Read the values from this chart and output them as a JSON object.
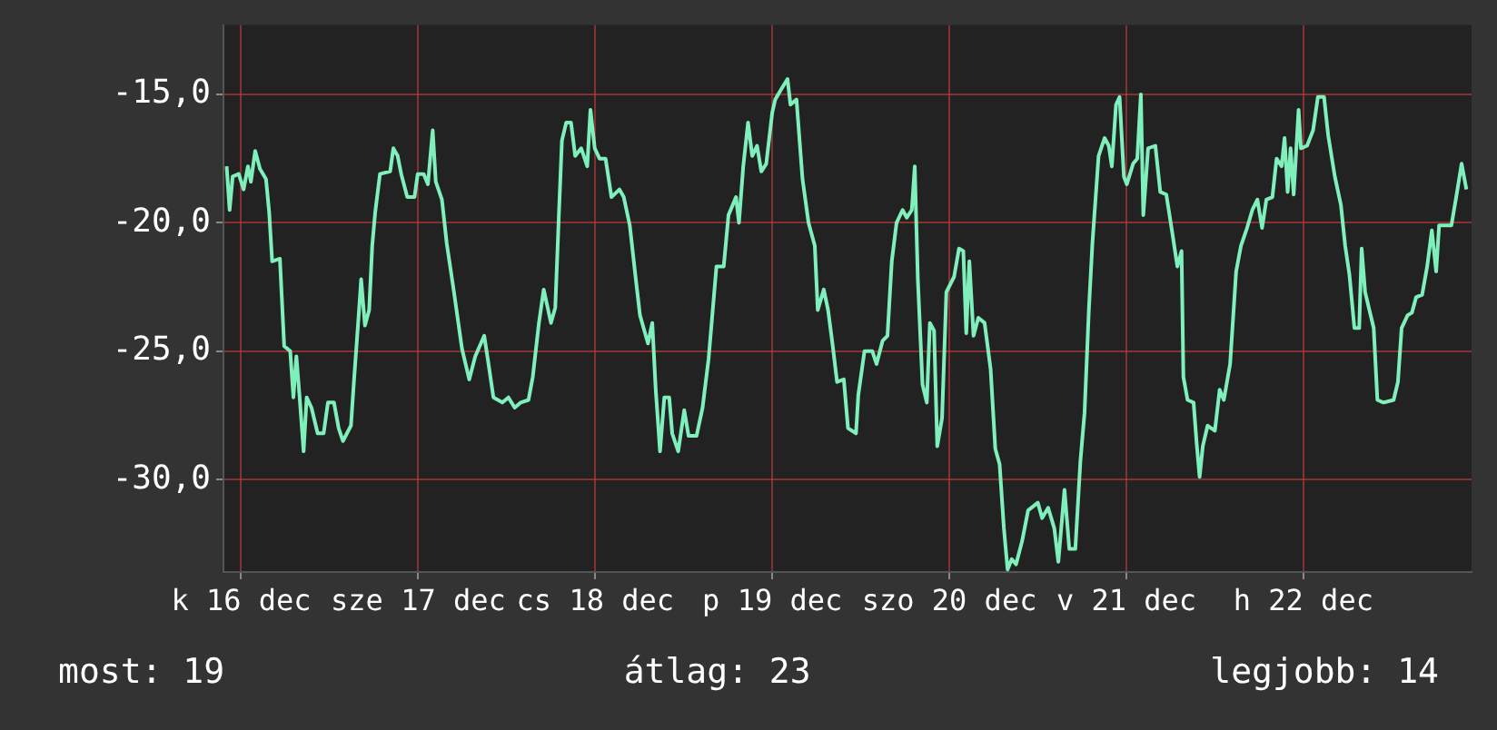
{
  "chart_data": {
    "type": "line",
    "annotations": [
      "most: 19",
      "átlag: 23",
      "legjobb: 14"
    ],
    "xlim": [
      "--12-15T21:36",
      "--12-22T22:48"
    ],
    "xticks": [
      {
        "value": "--12-16",
        "label": "k 16 dec"
      },
      {
        "value": "--12-17",
        "label": "sze 17 dec"
      },
      {
        "value": "--12-18",
        "label": "cs 18 dec"
      },
      {
        "value": "--12-19",
        "label": "p 19 dec"
      },
      {
        "value": "--12-20",
        "label": "szo 20 dec"
      },
      {
        "value": "--12-21",
        "label": "v 21 dec"
      },
      {
        "value": "--12-22",
        "label": "h 22 dec"
      }
    ],
    "ylim": [
      -33.6,
      -12.3
    ],
    "yticks": [
      {
        "value": -30,
        "label": "-30,0"
      },
      {
        "value": -25,
        "label": "-25,0"
      },
      {
        "value": -20,
        "label": "-20,0"
      },
      {
        "value": -15,
        "label": "-15,0"
      }
    ],
    "grid": true,
    "legend": false,
    "marker": "none",
    "line_style": "solid",
    "series": [
      {
        "color": "#7ff0bc",
        "x": [
          "--12-15T22:02",
          "--12-15T22:26",
          "--12-15T22:51",
          "--12-15T23:40",
          "--12-16T00:20",
          "--12-16T00:55",
          "--12-16T01:19",
          "--12-16T01:54",
          "--12-16T02:33",
          "--12-16T03:22",
          "--12-16T03:48",
          "--12-16T04:12",
          "--12-16T05:15",
          "--12-16T05:50",
          "--12-16T06:39",
          "--12-16T07:05",
          "--12-16T07:29",
          "--12-16T07:54",
          "--12-16T08:28",
          "--12-16T08:53",
          "--12-16T09:32",
          "--12-16T10:22",
          "--12-16T11:11",
          "--12-16T11:46",
          "--12-16T12:35",
          "--12-16T13:13",
          "--12-16T13:48",
          "--12-16T14:53",
          "--12-16T15:17",
          "--12-16T15:56",
          "--12-16T16:16",
          "--12-16T16:47",
          "--12-16T17:21",
          "--12-16T17:46",
          "--12-16T18:10",
          "--12-16T18:49",
          "--12-16T20:12",
          "--12-16T20:38",
          "--12-16T21:13",
          "--12-16T21:42",
          "--12-16T22:31",
          "--12-16T23:30",
          "--12-16T23:56",
          "--12-17T00:45",
          "--12-17T01:19",
          "--12-17T01:58",
          "--12-17T02:23",
          "--12-17T03:13",
          "--12-17T03:52",
          "--12-17T04:51",
          "--12-17T05:56",
          "--12-17T06:55",
          "--12-17T07:44",
          "--12-17T08:57",
          "--12-17T09:32",
          "--12-17T10:12",
          "--12-17T11:25",
          "--12-17T12:14",
          "--12-17T13:05",
          "--12-17T13:54",
          "--12-17T14:57",
          "--12-17T15:32",
          "--12-17T16:22",
          "--12-17T17:01",
          "--12-17T18:00",
          "--12-17T18:35",
          "--12-17T19:05",
          "--12-17T19:29",
          "--12-17T20:04",
          "--12-17T20:43",
          "--12-17T21:17",
          "--12-17T22:06",
          "--12-17T22:55",
          "--12-17T23:21",
          "--12-17T23:56",
          "--12-18T00:35",
          "--12-18T01:24",
          "--12-18T02:12",
          "--12-18T03:17",
          "--12-18T03:52",
          "--12-18T04:41",
          "--12-18T05:30",
          "--12-18T06:04",
          "--12-18T07:09",
          "--12-18T07:44",
          "--12-18T08:12",
          "--12-18T08:47",
          "--12-18T09:22",
          "--12-18T10:02",
          "--12-18T10:26",
          "--12-18T11:15",
          "--12-18T12:04",
          "--12-18T12:39",
          "--12-18T13:44",
          "--12-18T14:33",
          "--12-18T15:22",
          "--12-18T16:26",
          "--12-18T17:25",
          "--12-18T18:04",
          "--12-18T19:05",
          "--12-18T19:29",
          "--12-18T20:04",
          "--12-18T20:43",
          "--12-18T21:17",
          "--12-18T21:56",
          "--12-18T22:31",
          "--12-18T23:11",
          "--12-19T00:00",
          "--12-19T00:24",
          "--12-19T01:13",
          "--12-19T02:04",
          "--12-19T02:28",
          "--12-19T03:17",
          "--12-19T04:06",
          "--12-19T04:55",
          "--12-19T05:46",
          "--12-19T06:10",
          "--12-19T06:59",
          "--12-19T07:34",
          "--12-19T08:12",
          "--12-19T08:47",
          "--12-19T09:42",
          "--12-19T10:16",
          "--12-19T11:21",
          "--12-19T11:40",
          "--12-19T12:30",
          "--12-19T13:34",
          "--12-19T14:08",
          "--12-19T14:57",
          "--12-19T15:37",
          "--12-19T16:12",
          "--12-19T16:51",
          "--12-19T17:40",
          "--12-19T18:14",
          "--12-19T18:55",
          "--12-19T19:19",
          "--12-19T19:44",
          "--12-19T20:22",
          "--12-19T20:57",
          "--12-19T21:22",
          "--12-19T21:56",
          "--12-19T22:22",
          "--12-19T23:01",
          "--12-19T23:36",
          "--12-20T00:39",
          "--12-20T01:19",
          "--12-20T01:54",
          "--12-20T02:18",
          "--12-20T02:43",
          "--12-20T03:17",
          "--12-20T03:56",
          "--12-20T04:47",
          "--12-20T05:36",
          "--12-20T06:14",
          "--12-20T06:49",
          "--12-20T07:24",
          "--12-20T07:54",
          "--12-20T08:28",
          "--12-20T09:03",
          "--12-20T09:52",
          "--12-20T10:41",
          "--12-20T12:00",
          "--12-20T12:35",
          "--12-20T13:24",
          "--12-20T14:14",
          "--12-20T14:47",
          "--12-20T15:37",
          "--12-20T16:16",
          "--12-20T17:05",
          "--12-20T17:46",
          "--12-20T18:20",
          "--12-20T18:55",
          "--12-20T19:24",
          "--12-20T20:14",
          "--12-20T21:03",
          "--12-20T21:37",
          "--12-20T22:02",
          "--12-20T22:36",
          "--12-20T23:05",
          "--12-20T23:40",
          "--12-21T00:04",
          "--12-21T00:55",
          "--12-21T01:29",
          "--12-21T01:58",
          "--12-21T02:18",
          "--12-21T02:57",
          "--12-21T03:56",
          "--12-21T04:36",
          "--12-21T05:25",
          "--12-21T06:14",
          "--12-21T06:55",
          "--12-21T07:29",
          "--12-21T07:44",
          "--12-21T08:18",
          "--12-21T09:07",
          "--12-21T09:32",
          "--12-21T09:56",
          "--12-21T10:22",
          "--12-21T11:01",
          "--12-21T12:00",
          "--12-21T12:39",
          "--12-21T13:13",
          "--12-21T14:04",
          "--12-21T14:53",
          "--12-21T15:32",
          "--12-21T16:22",
          "--12-21T17:05",
          "--12-21T17:46",
          "--12-21T18:24",
          "--12-21T18:59",
          "--12-21T19:48",
          "--12-21T20:22",
          "--12-21T21:03",
          "--12-21T21:27",
          "--12-21T21:52",
          "--12-21T22:16",
          "--12-21T22:41",
          "--12-21T23:21",
          "--12-21T23:40",
          "--12-22T00:30",
          "--12-22T01:19",
          "--12-22T01:58",
          "--12-22T02:48",
          "--12-22T03:22",
          "--12-22T04:16",
          "--12-22T05:05",
          "--12-22T05:40",
          "--12-22T06:14",
          "--12-22T06:55",
          "--12-22T07:34",
          "--12-22T07:54",
          "--12-22T08:22",
          "--12-22T08:57",
          "--12-22T09:32",
          "--12-22T10:02",
          "--12-22T10:51",
          "--12-22T12:14",
          "--12-22T12:49",
          "--12-22T13:19",
          "--12-22T14:08",
          "--12-22T14:43",
          "--12-22T15:17",
          "--12-22T16:06",
          "--12-22T16:47",
          "--12-22T17:25",
          "--12-22T18:00",
          "--12-22T18:24",
          "--12-22T20:04",
          "--12-22T20:43",
          "--12-22T21:27",
          "--12-22T22:06"
        ],
        "values": [
          -17.8,
          -19.5,
          -18.2,
          -18.1,
          -18.7,
          -17.8,
          -18.4,
          -17.2,
          -17.9,
          -18.3,
          -19.6,
          -21.5,
          -21.4,
          -24.8,
          -25.0,
          -26.8,
          -25.2,
          -26.7,
          -28.9,
          -26.8,
          -27.2,
          -28.2,
          -28.2,
          -27.0,
          -27.0,
          -28.0,
          -28.5,
          -27.9,
          -26.2,
          -23.6,
          -22.2,
          -24.0,
          -23.4,
          -20.9,
          -19.6,
          -18.1,
          -18.0,
          -17.1,
          -17.4,
          -18.1,
          -19.0,
          -19.0,
          -18.1,
          -18.1,
          -18.5,
          -16.4,
          -18.4,
          -19.1,
          -20.8,
          -22.7,
          -24.9,
          -26.1,
          -25.2,
          -24.4,
          -25.5,
          -26.8,
          -27.0,
          -26.8,
          -27.2,
          -27.0,
          -26.9,
          -26.0,
          -23.9,
          -22.6,
          -23.9,
          -23.3,
          -19.6,
          -16.8,
          -16.1,
          -16.1,
          -17.4,
          -17.1,
          -17.8,
          -15.6,
          -17.1,
          -17.5,
          -17.5,
          -19.0,
          -18.7,
          -19.0,
          -20.1,
          -22.2,
          -23.6,
          -24.7,
          -23.9,
          -26.5,
          -28.9,
          -26.8,
          -26.8,
          -28.2,
          -28.9,
          -27.3,
          -28.3,
          -28.3,
          -27.2,
          -25.3,
          -21.7,
          -21.7,
          -19.7,
          -19.0,
          -20.0,
          -17.8,
          -16.1,
          -17.4,
          -17.0,
          -18.0,
          -17.7,
          -15.7,
          -15.2,
          -14.8,
          -14.4,
          -15.4,
          -15.2,
          -18.3,
          -20.0,
          -20.9,
          -23.4,
          -22.6,
          -23.4,
          -24.8,
          -26.2,
          -26.1,
          -28.0,
          -28.2,
          -26.7,
          -25.0,
          -25.0,
          -25.5,
          -24.6,
          -24.4,
          -21.5,
          -20.0,
          -19.5,
          -19.8,
          -19.5,
          -17.8,
          -22.2,
          -26.3,
          -27.0,
          -23.9,
          -24.2,
          -28.7,
          -27.6,
          -22.7,
          -22.1,
          -21.0,
          -21.1,
          -24.3,
          -21.5,
          -24.4,
          -23.7,
          -23.9,
          -25.7,
          -28.8,
          -29.4,
          -31.9,
          -33.5,
          -33.1,
          -33.3,
          -32.4,
          -31.2,
          -30.9,
          -31.5,
          -31.1,
          -31.9,
          -33.2,
          -30.4,
          -32.7,
          -32.7,
          -29.3,
          -27.4,
          -23.4,
          -20.8,
          -17.4,
          -16.7,
          -17.0,
          -17.8,
          -15.4,
          -15.1,
          -18.2,
          -18.5,
          -17.7,
          -17.5,
          -15.0,
          -19.7,
          -17.1,
          -17.0,
          -18.8,
          -18.9,
          -20.4,
          -21.7,
          -21.1,
          -26.0,
          -26.9,
          -27.0,
          -28.6,
          -29.9,
          -28.7,
          -27.9,
          -28.1,
          -26.5,
          -26.9,
          -25.5,
          -21.9,
          -20.9,
          -20.2,
          -19.5,
          -19.1,
          -20.2,
          -19.1,
          -19.0,
          -17.5,
          -17.8,
          -16.7,
          -18.8,
          -17.1,
          -18.9,
          -15.6,
          -17.1,
          -17.0,
          -16.4,
          -15.1,
          -15.1,
          -16.6,
          -18.2,
          -19.3,
          -20.9,
          -22.0,
          -24.1,
          -24.1,
          -21.0,
          -22.7,
          -23.4,
          -24.1,
          -26.9,
          -27.0,
          -26.9,
          -26.2,
          -24.1,
          -23.6,
          -23.5,
          -22.9,
          -22.8,
          -21.7,
          -20.3,
          -21.9,
          -20.1,
          -20.1,
          -19.0,
          -17.7,
          -18.7
        ]
      }
    ]
  }
}
